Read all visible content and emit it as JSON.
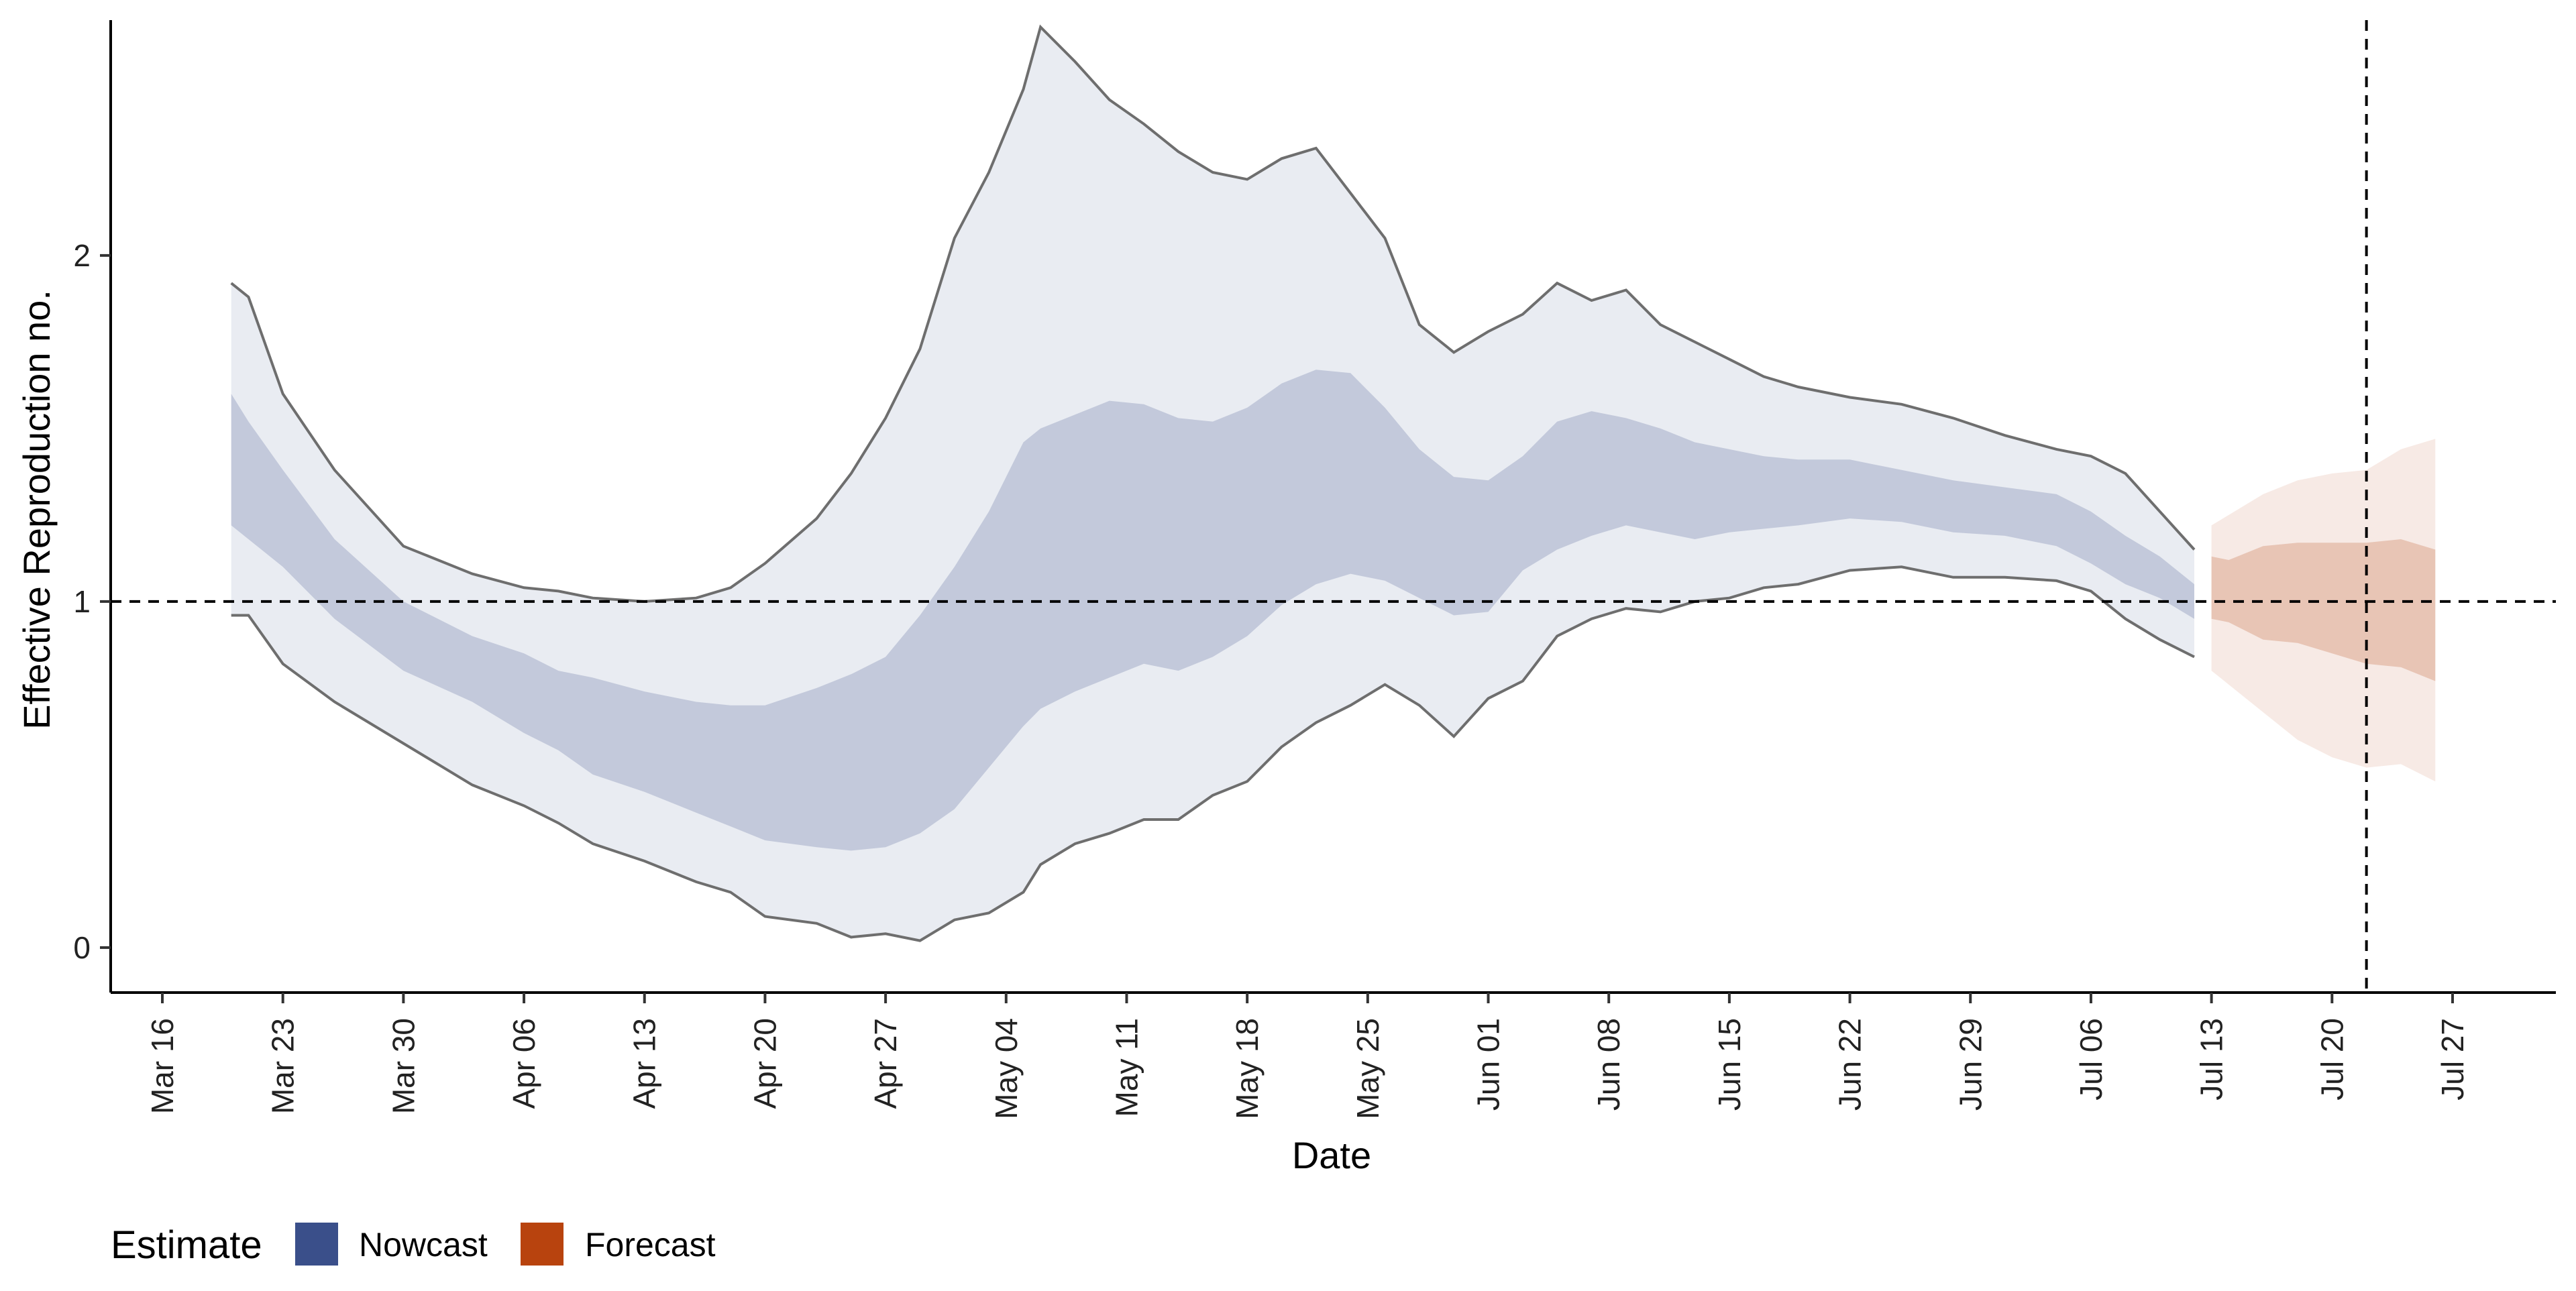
{
  "chart_data": {
    "type": "area",
    "title": "",
    "xlabel": "Date",
    "ylabel": "Effective Reproduction no.",
    "x_tick_labels": [
      "Mar 16",
      "Mar 23",
      "Mar 30",
      "Apr 06",
      "Apr 13",
      "Apr 20",
      "Apr 27",
      "May 04",
      "May 11",
      "May 18",
      "May 25",
      "Jun 01",
      "Jun 08",
      "Jun 15",
      "Jun 22",
      "Jun 29",
      "Jul 06",
      "Jul 13",
      "Jul 20",
      "Jul 27"
    ],
    "x_ticks": [
      "2020-03-16",
      "2020-03-23",
      "2020-03-30",
      "2020-04-06",
      "2020-04-13",
      "2020-04-20",
      "2020-04-27",
      "2020-05-04",
      "2020-05-11",
      "2020-05-18",
      "2020-05-25",
      "2020-06-01",
      "2020-06-08",
      "2020-06-15",
      "2020-06-22",
      "2020-06-29",
      "2020-07-06",
      "2020-07-13",
      "2020-07-20",
      "2020-07-27"
    ],
    "xlim": [
      "2020-03-13",
      "2020-08-02"
    ],
    "y_ticks": [
      0,
      1,
      2
    ],
    "ylim": [
      -0.13,
      2.68
    ],
    "reference_lines": {
      "y": 1,
      "x": "2020-07-22"
    },
    "grid": false,
    "legend": {
      "title": "Estimate",
      "position": "bottom-left",
      "entries": [
        {
          "label": "Nowcast",
          "color": "#3A4F8A"
        },
        {
          "label": "Forecast",
          "color": "#B8430E"
        }
      ]
    },
    "series": [
      {
        "name": "Nowcast",
        "color": "#3A4F8A",
        "dates": [
          "2020-03-20",
          "2020-03-21",
          "2020-03-23",
          "2020-03-26",
          "2020-03-30",
          "2020-04-03",
          "2020-04-06",
          "2020-04-08",
          "2020-04-10",
          "2020-04-13",
          "2020-04-16",
          "2020-04-18",
          "2020-04-20",
          "2020-04-23",
          "2020-04-25",
          "2020-04-27",
          "2020-04-29",
          "2020-05-01",
          "2020-05-03",
          "2020-05-05",
          "2020-05-06",
          "2020-05-08",
          "2020-05-10",
          "2020-05-12",
          "2020-05-14",
          "2020-05-16",
          "2020-05-18",
          "2020-05-20",
          "2020-05-22",
          "2020-05-24",
          "2020-05-26",
          "2020-05-28",
          "2020-05-30",
          "2020-06-01",
          "2020-06-03",
          "2020-06-05",
          "2020-06-07",
          "2020-06-09",
          "2020-06-11",
          "2020-06-13",
          "2020-06-15",
          "2020-06-17",
          "2020-06-19",
          "2020-06-22",
          "2020-06-25",
          "2020-06-28",
          "2020-07-01",
          "2020-07-04",
          "2020-07-06",
          "2020-07-08",
          "2020-07-10",
          "2020-07-12"
        ],
        "lower90": [
          0.96,
          0.96,
          0.82,
          0.71,
          0.59,
          0.47,
          0.41,
          0.36,
          0.3,
          0.25,
          0.19,
          0.16,
          0.09,
          0.07,
          0.03,
          0.04,
          0.02,
          0.08,
          0.1,
          0.16,
          0.24,
          0.3,
          0.33,
          0.37,
          0.37,
          0.44,
          0.48,
          0.58,
          0.65,
          0.7,
          0.76,
          0.7,
          0.61,
          0.72,
          0.77,
          0.9,
          0.95,
          0.98,
          0.97,
          1.0,
          1.01,
          1.04,
          1.05,
          1.09,
          1.1,
          1.07,
          1.07,
          1.06,
          1.03,
          0.95,
          0.89,
          0.84
        ],
        "lower50": [
          1.22,
          1.18,
          1.1,
          0.95,
          0.8,
          0.71,
          0.62,
          0.57,
          0.5,
          0.45,
          0.39,
          0.35,
          0.31,
          0.29,
          0.28,
          0.29,
          0.33,
          0.4,
          0.52,
          0.64,
          0.69,
          0.74,
          0.78,
          0.82,
          0.8,
          0.84,
          0.9,
          0.99,
          1.05,
          1.08,
          1.06,
          1.01,
          0.96,
          0.97,
          1.09,
          1.15,
          1.19,
          1.22,
          1.2,
          1.18,
          1.2,
          1.21,
          1.22,
          1.24,
          1.23,
          1.2,
          1.19,
          1.16,
          1.11,
          1.05,
          1.01,
          0.95
        ],
        "upper50": [
          1.6,
          1.52,
          1.38,
          1.18,
          1.0,
          0.9,
          0.85,
          0.8,
          0.78,
          0.74,
          0.71,
          0.7,
          0.7,
          0.75,
          0.79,
          0.84,
          0.96,
          1.1,
          1.26,
          1.46,
          1.5,
          1.54,
          1.58,
          1.57,
          1.53,
          1.52,
          1.56,
          1.63,
          1.67,
          1.66,
          1.56,
          1.44,
          1.36,
          1.35,
          1.42,
          1.52,
          1.55,
          1.53,
          1.5,
          1.46,
          1.44,
          1.42,
          1.41,
          1.41,
          1.38,
          1.35,
          1.33,
          1.31,
          1.26,
          1.19,
          1.13,
          1.05
        ],
        "upper90": [
          1.92,
          1.88,
          1.6,
          1.38,
          1.16,
          1.08,
          1.04,
          1.03,
          1.01,
          1.0,
          1.01,
          1.04,
          1.11,
          1.24,
          1.37,
          1.53,
          1.73,
          2.05,
          2.24,
          2.48,
          2.66,
          2.56,
          2.45,
          2.38,
          2.3,
          2.24,
          2.22,
          2.28,
          2.31,
          2.18,
          2.05,
          1.8,
          1.72,
          1.78,
          1.83,
          1.92,
          1.87,
          1.9,
          1.8,
          1.75,
          1.7,
          1.65,
          1.62,
          1.59,
          1.57,
          1.53,
          1.48,
          1.44,
          1.42,
          1.37,
          1.26,
          1.15
        ]
      },
      {
        "name": "Forecast",
        "color": "#B8430E",
        "dates": [
          "2020-07-13",
          "2020-07-14",
          "2020-07-16",
          "2020-07-18",
          "2020-07-20",
          "2020-07-22",
          "2020-07-24",
          "2020-07-26"
        ],
        "lower90": [
          0.8,
          0.76,
          0.68,
          0.6,
          0.55,
          0.52,
          0.53,
          0.48
        ],
        "lower50": [
          0.95,
          0.94,
          0.89,
          0.88,
          0.85,
          0.82,
          0.81,
          0.77
        ],
        "upper50": [
          1.13,
          1.12,
          1.16,
          1.17,
          1.17,
          1.17,
          1.18,
          1.15
        ],
        "upper90": [
          1.22,
          1.25,
          1.31,
          1.35,
          1.37,
          1.38,
          1.44,
          1.47
        ]
      }
    ]
  }
}
